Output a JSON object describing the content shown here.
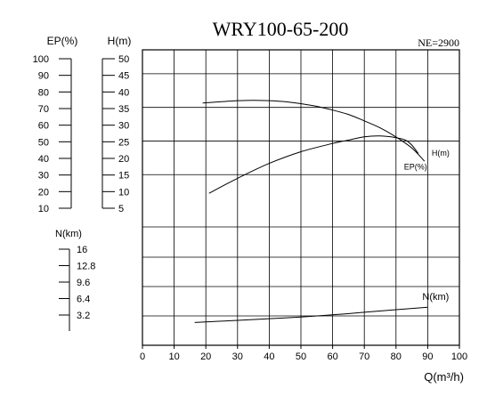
{
  "chart_data": {
    "type": "line",
    "title": "WRY100-65-200",
    "speed_label": "NE=2900",
    "xlabel": "Q(m³/h)",
    "xlim": [
      0,
      100
    ],
    "x_ticks": [
      "0",
      "10",
      "20",
      "30",
      "40",
      "50",
      "60",
      "70",
      "80",
      "90",
      "100"
    ],
    "axes": {
      "ep": {
        "label": "EP(%)",
        "lim": [
          10,
          100
        ],
        "ticks": [
          "100",
          "90",
          "80",
          "70",
          "60",
          "50",
          "40",
          "30",
          "20",
          "10"
        ]
      },
      "h": {
        "label": "H(m)",
        "lim": [
          5,
          50
        ],
        "ticks": [
          "50",
          "45",
          "40",
          "35",
          "30",
          "25",
          "20",
          "15",
          "10",
          "5"
        ]
      },
      "n": {
        "label": "N(km)",
        "lim": [
          0,
          19.2
        ],
        "ticks": [
          "16",
          "12.8",
          "9.6",
          "6.4",
          "3.2"
        ]
      }
    },
    "series": [
      {
        "name": "H(m)",
        "axis": "h",
        "x": [
          19,
          25,
          30,
          35,
          40,
          45,
          50,
          55,
          60,
          65,
          70,
          75,
          80,
          85,
          89
        ],
        "y": [
          36.3,
          36.7,
          37.0,
          37.1,
          37.0,
          36.7,
          36.1,
          35.3,
          34.2,
          32.9,
          31.0,
          28.9,
          26.2,
          22.9,
          19.0
        ]
      },
      {
        "name": "EP(%)",
        "axis": "ep",
        "x": [
          21,
          30,
          40,
          50,
          60,
          65,
          70,
          75,
          80,
          83,
          85,
          87
        ],
        "y": [
          19,
          28,
          37,
          44,
          49,
          51,
          53,
          53.5,
          52.5,
          51,
          48,
          43
        ]
      },
      {
        "name": "N(km)",
        "axis": "n",
        "x": [
          16.5,
          30,
          40,
          50,
          60,
          70,
          80,
          90
        ],
        "y": [
          2.0,
          2.5,
          2.9,
          3.3,
          3.8,
          4.4,
          5.0,
          5.6
        ]
      }
    ]
  }
}
